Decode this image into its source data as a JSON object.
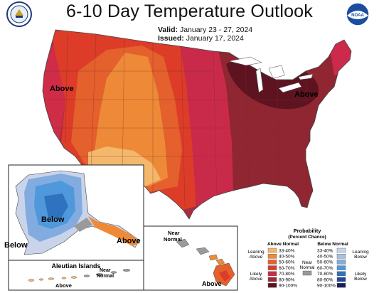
{
  "header": {
    "title": "6-10 Day Temperature Outlook",
    "valid_label": "Valid:",
    "valid_dates": "January 23 - 27, 2024",
    "issued_label": "Issued:",
    "issued_date": "January 17, 2024"
  },
  "logos": {
    "left": "department-of-commerce-seal",
    "right_text": "NOAA"
  },
  "map_labels": {
    "west_coast": "Above",
    "northeast": "Above",
    "alaska": "Below",
    "alaska_southeast": "Above",
    "alaska_west": "Below",
    "aleutian_title": "Aleutian Islands",
    "aleutian_above": "Above",
    "aleutian_near": "Near",
    "aleutian_normal": "Normal",
    "hawaii_near": "Near",
    "hawaii_normal": "Normal",
    "hawaii_above": "Above"
  },
  "legend": {
    "title": "Probability",
    "subtitle": "(Percent Chance)",
    "above_header": "Above Normal",
    "below_header": "Below Normal",
    "leaning_above_1": "Leaning",
    "leaning_above_2": "Above",
    "likely_above_1": "Likely",
    "likely_above_2": "Above",
    "near_1": "Near",
    "near_2": "Normal",
    "leaning_below_1": "Leaning",
    "leaning_below_2": "Below",
    "likely_below_1": "Likely",
    "likely_below_2": "Below",
    "above_bins": [
      {
        "label": "33-40%",
        "color": "#f3b86c"
      },
      {
        "label": "40-50%",
        "color": "#ee8a37"
      },
      {
        "label": "50-60%",
        "color": "#e4602c"
      },
      {
        "label": "60-70%",
        "color": "#dc3c28"
      },
      {
        "label": "70-80%",
        "color": "#cc2a4a"
      },
      {
        "label": "80-90%",
        "color": "#9e2a2e"
      },
      {
        "label": "90-100%",
        "color": "#5e1420"
      }
    ],
    "below_bins": [
      {
        "label": "33-40%",
        "color": "#c9d4ea"
      },
      {
        "label": "40-50%",
        "color": "#a9c1e3"
      },
      {
        "label": "50-60%",
        "color": "#82ace0"
      },
      {
        "label": "60-70%",
        "color": "#4f98db"
      },
      {
        "label": "70-80%",
        "color": "#2e72c0"
      },
      {
        "label": "80-90%",
        "color": "#22479a"
      },
      {
        "label": "90-100%",
        "color": "#1b1f5e"
      }
    ],
    "near_color": "#9a9a9a"
  }
}
